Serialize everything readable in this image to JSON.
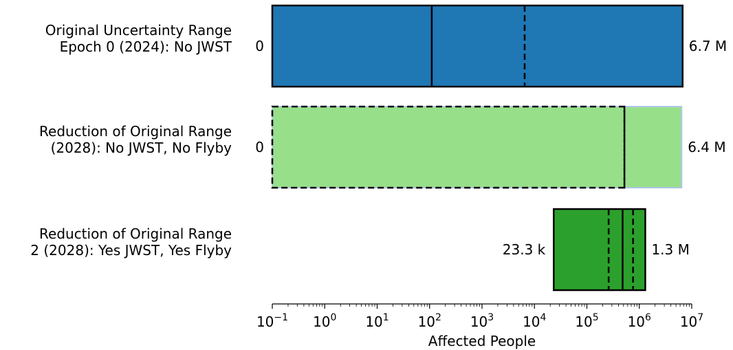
{
  "chart_data": {
    "type": "bar",
    "orientation": "horizontal",
    "title": "",
    "xlabel": "Affected People",
    "xscale": "log",
    "xlim": [
      0.1,
      10000000
    ],
    "grid": false,
    "xticks": [
      {
        "value": 0.1,
        "base": "10",
        "exp": "−1"
      },
      {
        "value": 1,
        "base": "10",
        "exp": "0"
      },
      {
        "value": 10,
        "base": "10",
        "exp": "1"
      },
      {
        "value": 100,
        "base": "10",
        "exp": "2"
      },
      {
        "value": 1000,
        "base": "10",
        "exp": "3"
      },
      {
        "value": 10000,
        "base": "10",
        "exp": "4"
      },
      {
        "value": 100000,
        "base": "10",
        "exp": "5"
      },
      {
        "value": 1000000,
        "base": "10",
        "exp": "6"
      },
      {
        "value": 10000000,
        "base": "10",
        "exp": "7"
      }
    ],
    "bars": [
      {
        "label_lines": [
          "Original Uncertainty Range",
          "Epoch 0 (2024): No JWST"
        ],
        "start": 0.1,
        "end": 6700000,
        "start_label": "0",
        "end_label": "6.7 M",
        "color": "#1f77b4",
        "border": "solid",
        "solid_markers": [
          110
        ],
        "dashed_markers": [
          6500
        ]
      },
      {
        "label_lines": [
          "Reduction of Original Range",
          "(2028): No JWST, No Flyby"
        ],
        "start": 0.1,
        "end": 6400000,
        "start_label": "0",
        "end_label": "6.4 M",
        "color": "#98df8a",
        "border": "light",
        "solid_markers": [],
        "dashed_markers": [
          520000
        ],
        "dashed_outline_end": 520000
      },
      {
        "label_lines": [
          "Reduction of Original Range",
          "2 (2028): Yes JWST, Yes Flyby"
        ],
        "start": 23300,
        "end": 1300000,
        "start_label": "23.3 k",
        "end_label": "1.3 M",
        "color": "#2ca02c",
        "border": "solid",
        "solid_markers": [
          480000
        ],
        "dashed_markers": [
          260000,
          760000
        ]
      }
    ]
  }
}
